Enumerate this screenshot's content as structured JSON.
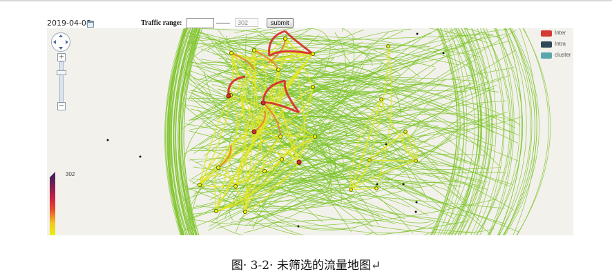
{
  "page": {
    "date": "2019-04-08",
    "traffic_range_label": "Traffic range:",
    "range_min_value": "",
    "range_max_placeholder": "302",
    "submit_label": "submit",
    "caption": "图· 3-2· 未筛选的流量地图↵"
  },
  "legend": {
    "items": [
      {
        "label": "Inter",
        "color": "#d43b34"
      },
      {
        "label": "Intra",
        "color": "#2f4858"
      },
      {
        "label": "cluster",
        "color": "#5aa6ad"
      }
    ]
  },
  "colorbar": {
    "max_label": "302",
    "colors": [
      "#4a1f5a",
      "#c81e45",
      "#e84a2a",
      "#f3c423",
      "#e9f20c"
    ]
  },
  "map": {
    "background": "#f2f1ec",
    "edge_colors": {
      "low": "#7ec42a",
      "mid": "#e3e621",
      "high": "#e8842a",
      "max": "#d6312f"
    }
  }
}
